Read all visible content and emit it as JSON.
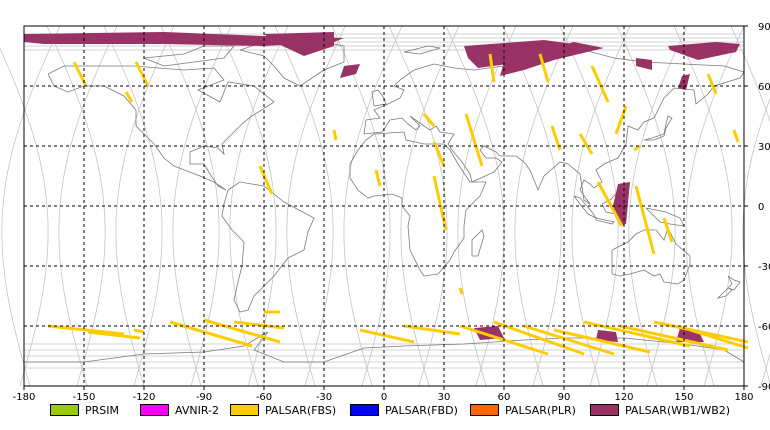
{
  "map": {
    "x_ticks": [
      "-180",
      "-150",
      "-120",
      "-90",
      "-60",
      "-30",
      "0",
      "30",
      "60",
      "90",
      "120",
      "150",
      "180"
    ],
    "y_ticks": [
      "90",
      "60",
      "30",
      "0",
      "-30",
      "-60",
      "-90"
    ],
    "colors": {
      "land_outline": "#7a7a7a",
      "orbit_track": "#c4c4c4",
      "grid": "#000000",
      "fbs": "#ffcc00",
      "wb": "#993366"
    }
  },
  "legend": [
    {
      "label": "PRSIM",
      "color": "#99cc00"
    },
    {
      "label": "AVNIR-2",
      "color": "#ff00ff"
    },
    {
      "label": "PALSAR(FBS)",
      "color": "#ffcc00"
    },
    {
      "label": "PALSAR(FBD)",
      "color": "#0000ff"
    },
    {
      "label": "PALSAR(PLR)",
      "color": "#ff6600"
    },
    {
      "label": "PALSAR(WB1/WB2)",
      "color": "#993366"
    }
  ]
}
